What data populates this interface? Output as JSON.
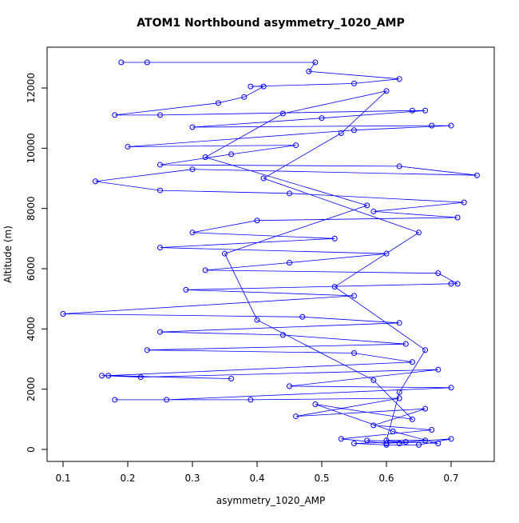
{
  "chart_data": {
    "type": "line",
    "title": "ATOM1 Northbound asymmetry_1020_AMP",
    "x_label": "asymmetry_1020_AMP",
    "y_label": "Altitude (m)",
    "color": "#0000ff",
    "markers": "open-circle",
    "x": [
      0.19,
      0.23,
      0.49,
      0.48,
      0.62,
      0.55,
      0.39,
      0.41,
      0.38,
      0.34,
      0.18,
      0.25,
      0.64,
      0.66,
      0.5,
      0.3,
      0.67,
      0.7,
      0.55,
      0.2,
      0.46,
      0.36,
      0.25,
      0.62,
      0.74,
      0.3,
      0.15,
      0.25,
      0.45,
      0.72,
      0.58,
      0.71,
      0.4,
      0.3,
      0.52,
      0.25,
      0.6,
      0.45,
      0.32,
      0.68,
      0.71,
      0.7,
      0.29,
      0.55,
      0.1,
      0.47,
      0.62,
      0.25,
      0.44,
      0.63,
      0.23,
      0.55,
      0.64,
      0.17,
      0.36,
      0.16,
      0.22,
      0.68,
      0.45,
      0.7,
      0.26,
      0.18,
      0.39,
      0.62,
      0.46,
      0.66,
      0.58,
      0.67,
      0.53,
      0.6,
      0.7,
      0.65,
      0.6,
      0.55,
      0.63,
      0.57,
      0.68,
      0.61,
      0.49,
      0.64,
      0.58,
      0.4,
      0.35,
      0.57,
      0.32,
      0.44,
      0.6,
      0.53,
      0.41,
      0.65,
      0.52,
      0.66,
      0.62,
      0.6,
      0.66,
      0.62
    ],
    "values": [
      12850,
      12850,
      12850,
      12550,
      12300,
      12150,
      12050,
      12050,
      11700,
      11500,
      11100,
      11100,
      11250,
      11250,
      11000,
      10700,
      10750,
      10750,
      10600,
      10050,
      10100,
      9800,
      9450,
      9400,
      9100,
      9300,
      8900,
      8600,
      8500,
      8200,
      7900,
      7700,
      7600,
      7200,
      7000,
      6700,
      6500,
      6200,
      5950,
      5850,
      5500,
      5500,
      5300,
      5100,
      4500,
      4400,
      4200,
      3900,
      3800,
      3500,
      3300,
      3200,
      2900,
      2450,
      2350,
      2450,
      2400,
      2650,
      2100,
      2050,
      1650,
      1650,
      1650,
      1700,
      1100,
      1350,
      800,
      650,
      350,
      200,
      350,
      150,
      150,
      200,
      250,
      300,
      200,
      600,
      1500,
      1000,
      2300,
      4300,
      6500,
      8100,
      9700,
      11150,
      11900,
      10500,
      9000,
      7200,
      5400,
      3300,
      1900,
      300,
      300,
      200
    ],
    "xlim": [
      0.0753,
      0.7667
    ],
    "ylim": [
      -398,
      13354
    ],
    "xticks": [
      0.1,
      0.2,
      0.3,
      0.4,
      0.5,
      0.6,
      0.7
    ],
    "yticks": [
      0,
      2000,
      4000,
      6000,
      8000,
      10000,
      12000
    ]
  }
}
